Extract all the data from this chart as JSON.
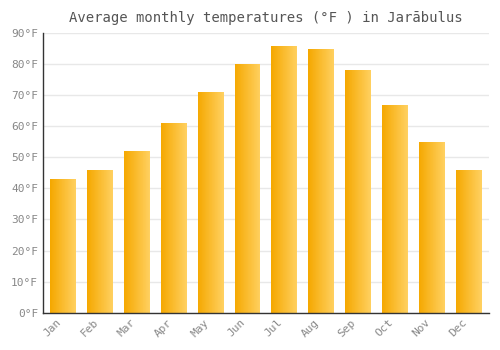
{
  "title": "Average monthly temperatures (°F ) in Jarābulus",
  "months": [
    "Jan",
    "Feb",
    "Mar",
    "Apr",
    "May",
    "Jun",
    "Jul",
    "Aug",
    "Sep",
    "Oct",
    "Nov",
    "Dec"
  ],
  "values": [
    43,
    46,
    52,
    61,
    71,
    80,
    86,
    85,
    78,
    67,
    55,
    46
  ],
  "ylim": [
    0,
    90
  ],
  "yticks": [
    0,
    10,
    20,
    30,
    40,
    50,
    60,
    70,
    80,
    90
  ],
  "ytick_labels": [
    "0°F",
    "10°F",
    "20°F",
    "30°F",
    "40°F",
    "50°F",
    "60°F",
    "70°F",
    "80°F",
    "90°F"
  ],
  "title_fontsize": 10,
  "tick_fontsize": 8,
  "background_color": "#ffffff",
  "grid_color": "#e8e8e8",
  "bar_color_left": "#F5A800",
  "bar_color_right": "#FFD060",
  "bar_width": 0.7
}
